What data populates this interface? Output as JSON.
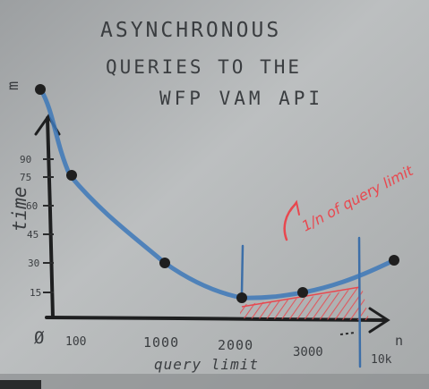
{
  "whiteboard": {
    "title_lines": [
      "ASYNCHRONOUS",
      "QUERIES TO THE",
      "WFP VAM API"
    ],
    "y_axis_label": "time",
    "y_unit": "m",
    "y_ticks": [
      "90",
      "75",
      "60",
      "45",
      "30",
      "15"
    ],
    "x_ticks": [
      "100",
      "1000",
      "2000",
      "3000",
      "10k"
    ],
    "origin_label": "Ø",
    "x_axis_label": "query limit",
    "x_axis_end": "n",
    "annotation": "1/n of query limit",
    "colors": {
      "curve": "#3d78b8",
      "hatch": "#e8484f",
      "marker": "#1f1f1f",
      "board": "#b7babb"
    }
  }
}
